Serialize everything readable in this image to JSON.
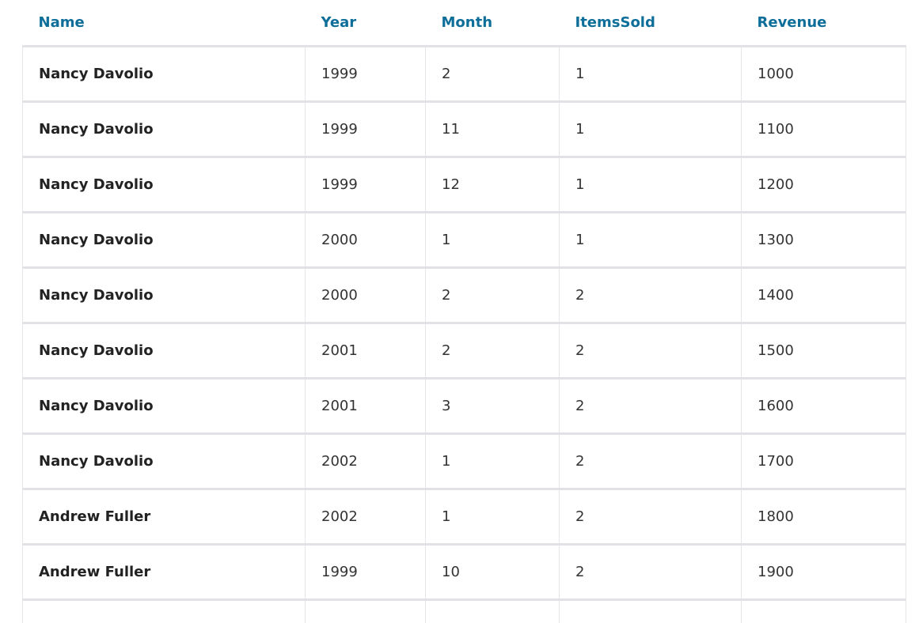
{
  "grid": {
    "columns": [
      {
        "key": "name",
        "label": "Name"
      },
      {
        "key": "year",
        "label": "Year"
      },
      {
        "key": "month",
        "label": "Month"
      },
      {
        "key": "items_sold",
        "label": "ItemsSold"
      },
      {
        "key": "revenue",
        "label": "Revenue"
      }
    ],
    "rows": [
      {
        "name": "Nancy Davolio",
        "year": "1999",
        "month": "2",
        "items_sold": "1",
        "revenue": "1000"
      },
      {
        "name": "Nancy Davolio",
        "year": "1999",
        "month": "11",
        "items_sold": "1",
        "revenue": "1100"
      },
      {
        "name": "Nancy Davolio",
        "year": "1999",
        "month": "12",
        "items_sold": "1",
        "revenue": "1200"
      },
      {
        "name": "Nancy Davolio",
        "year": "2000",
        "month": "1",
        "items_sold": "1",
        "revenue": "1300"
      },
      {
        "name": "Nancy Davolio",
        "year": "2000",
        "month": "2",
        "items_sold": "2",
        "revenue": "1400"
      },
      {
        "name": "Nancy Davolio",
        "year": "2001",
        "month": "2",
        "items_sold": "2",
        "revenue": "1500"
      },
      {
        "name": "Nancy Davolio",
        "year": "2001",
        "month": "3",
        "items_sold": "2",
        "revenue": "1600"
      },
      {
        "name": "Nancy Davolio",
        "year": "2002",
        "month": "1",
        "items_sold": "2",
        "revenue": "1700"
      },
      {
        "name": "Andrew Fuller",
        "year": "2002",
        "month": "1",
        "items_sold": "2",
        "revenue": "1800"
      },
      {
        "name": "Andrew Fuller",
        "year": "1999",
        "month": "10",
        "items_sold": "2",
        "revenue": "1900"
      }
    ]
  }
}
